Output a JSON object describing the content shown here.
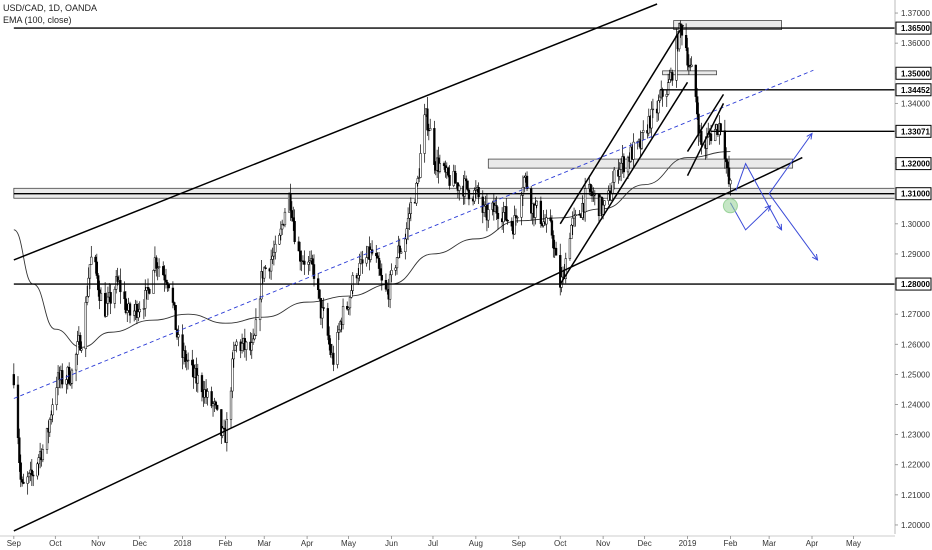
{
  "header": {
    "symbol_line": "USD/CAD, 1D, OANDA",
    "indicator_line": "EMA (100, close)"
  },
  "colors": {
    "candle_up": "#ffffff",
    "candle_down": "#000000",
    "candle_outline": "#000000",
    "ema": "#333333",
    "midline": "#2b3bd6",
    "projection_arrow": "#3b4bd8",
    "highlight_circle": "#9ad39a"
  },
  "chart_data": {
    "type": "candlestick",
    "title": "USD/CAD, 1D, OANDA",
    "indicator": "EMA (100, close)",
    "x_tick_labels": [
      "Sep",
      "Oct",
      "Nov",
      "Dec",
      "2018",
      "Feb",
      "Mar",
      "Apr",
      "May",
      "Jun",
      "Jul",
      "Aug",
      "Sep",
      "Oct",
      "Nov",
      "Dec",
      "2019",
      "Feb",
      "Mar",
      "Apr",
      "May"
    ],
    "x_tick_dates": [
      "2017-09-01",
      "2017-10-01",
      "2017-11-01",
      "2017-12-01",
      "2018-01-01",
      "2018-02-01",
      "2018-03-01",
      "2018-04-01",
      "2018-05-01",
      "2018-06-01",
      "2018-07-01",
      "2018-08-01",
      "2018-09-01",
      "2018-10-01",
      "2018-11-01",
      "2018-12-01",
      "2019-01-01",
      "2019-02-01",
      "2019-03-01",
      "2019-04-01",
      "2019-05-01"
    ],
    "y_tick_labels": [
      "1.20000",
      "1.21000",
      "1.22000",
      "1.23000",
      "1.24000",
      "1.25000",
      "1.26000",
      "1.27000",
      "1.28000",
      "1.29000",
      "1.30000",
      "1.31000",
      "1.32000",
      "1.33000",
      "1.34000",
      "1.35000",
      "1.36000",
      "1.37000"
    ],
    "ylim": [
      1.197,
      1.373
    ],
    "grid": false,
    "marked_levels": [
      {
        "label": "1.36500",
        "value": 1.365
      },
      {
        "label": "1.35000",
        "value": 1.35
      },
      {
        "label": "1.34452",
        "value": 1.34452
      },
      {
        "label": "1.33071",
        "value": 1.33071
      },
      {
        "label": "1.32000",
        "value": 1.32
      },
      {
        "label": "1.31000",
        "value": 1.31
      },
      {
        "label": "1.28000",
        "value": 1.28
      }
    ],
    "price_path_anchors": [
      [
        "2017-09-01",
        1.25
      ],
      [
        "2017-09-07",
        1.212
      ],
      [
        "2017-09-12",
        1.215
      ],
      [
        "2017-09-22",
        1.225
      ],
      [
        "2017-10-03",
        1.248
      ],
      [
        "2017-10-12",
        1.25
      ],
      [
        "2017-10-20",
        1.262
      ],
      [
        "2017-10-27",
        1.288
      ],
      [
        "2017-11-06",
        1.272
      ],
      [
        "2017-11-15",
        1.28
      ],
      [
        "2017-11-24",
        1.27
      ],
      [
        "2017-12-05",
        1.275
      ],
      [
        "2017-12-12",
        1.288
      ],
      [
        "2017-12-20",
        1.283
      ],
      [
        "2018-01-01",
        1.256
      ],
      [
        "2018-01-12",
        1.248
      ],
      [
        "2018-01-22",
        1.24
      ],
      [
        "2018-01-31",
        1.229
      ],
      [
        "2018-02-09",
        1.26
      ],
      [
        "2018-02-20",
        1.258
      ],
      [
        "2018-03-01",
        1.285
      ],
      [
        "2018-03-09",
        1.29
      ],
      [
        "2018-03-19",
        1.309
      ],
      [
        "2018-03-26",
        1.29
      ],
      [
        "2018-04-05",
        1.285
      ],
      [
        "2018-04-12",
        1.27
      ],
      [
        "2018-04-20",
        1.255
      ],
      [
        "2018-04-27",
        1.27
      ],
      [
        "2018-05-08",
        1.285
      ],
      [
        "2018-05-18",
        1.29
      ],
      [
        "2018-05-28",
        1.277
      ],
      [
        "2018-06-08",
        1.292
      ],
      [
        "2018-06-18",
        1.31
      ],
      [
        "2018-06-26",
        1.335
      ],
      [
        "2018-07-04",
        1.32
      ],
      [
        "2018-07-12",
        1.315
      ],
      [
        "2018-07-20",
        1.313
      ],
      [
        "2018-08-01",
        1.31
      ],
      [
        "2018-08-08",
        1.303
      ],
      [
        "2018-08-17",
        1.305
      ],
      [
        "2018-08-28",
        1.3
      ],
      [
        "2018-09-05",
        1.315
      ],
      [
        "2018-09-12",
        1.305
      ],
      [
        "2018-09-24",
        1.298
      ],
      [
        "2018-10-01",
        1.28
      ],
      [
        "2018-10-10",
        1.3
      ],
      [
        "2018-10-22",
        1.31
      ],
      [
        "2018-11-01",
        1.305
      ],
      [
        "2018-11-14",
        1.32
      ],
      [
        "2018-11-26",
        1.325
      ],
      [
        "2018-12-06",
        1.335
      ],
      [
        "2018-12-17",
        1.345
      ],
      [
        "2018-12-28",
        1.365
      ],
      [
        "2019-01-04",
        1.35
      ],
      [
        "2019-01-12",
        1.325
      ],
      [
        "2019-01-18",
        1.33
      ],
      [
        "2019-01-25",
        1.333
      ],
      [
        "2019-02-01",
        1.312
      ]
    ],
    "ema_anchors": [
      [
        "2017-09-01",
        1.298
      ],
      [
        "2017-09-15",
        1.28
      ],
      [
        "2017-10-01",
        1.265
      ],
      [
        "2017-10-20",
        1.259
      ],
      [
        "2017-11-10",
        1.264
      ],
      [
        "2017-12-10",
        1.268
      ],
      [
        "2018-01-05",
        1.27
      ],
      [
        "2018-02-01",
        1.267
      ],
      [
        "2018-03-01",
        1.269
      ],
      [
        "2018-04-01",
        1.274
      ],
      [
        "2018-05-01",
        1.276
      ],
      [
        "2018-06-01",
        1.28
      ],
      [
        "2018-07-01",
        1.29
      ],
      [
        "2018-08-01",
        1.295
      ],
      [
        "2018-09-01",
        1.301
      ],
      [
        "2018-10-01",
        1.302
      ],
      [
        "2018-11-01",
        1.305
      ],
      [
        "2018-12-01",
        1.313
      ],
      [
        "2019-01-01",
        1.322
      ],
      [
        "2019-02-01",
        1.324
      ]
    ],
    "trendlines": [
      {
        "name": "channel-upper",
        "points": [
          [
            "2017-09-01",
            1.288
          ],
          [
            "2018-12-10",
            1.373
          ]
        ],
        "style": "solid"
      },
      {
        "name": "channel-lower",
        "points": [
          [
            "2017-09-01",
            1.198
          ],
          [
            "2019-03-25",
            1.322
          ]
        ],
        "style": "solid"
      },
      {
        "name": "channel-mid",
        "points": [
          [
            "2017-09-01",
            1.242
          ],
          [
            "2019-04-02",
            1.351
          ]
        ],
        "style": "dashed"
      },
      {
        "name": "rising-channel-lower",
        "points": [
          [
            "2018-10-01",
            1.28
          ],
          [
            "2019-01-01",
            1.347
          ]
        ],
        "style": "solid"
      },
      {
        "name": "rising-channel-upper",
        "points": [
          [
            "2018-10-01",
            1.3
          ],
          [
            "2018-12-29",
            1.366
          ]
        ],
        "style": "solid"
      },
      {
        "name": "flag-lower",
        "points": [
          [
            "2019-01-01",
            1.316
          ],
          [
            "2019-01-27",
            1.34
          ]
        ],
        "style": "solid"
      },
      {
        "name": "flag-upper",
        "points": [
          [
            "2019-01-01",
            1.324
          ],
          [
            "2019-01-27",
            1.343
          ]
        ],
        "style": "solid"
      }
    ],
    "horizontal_lines": [
      {
        "value": 1.365,
        "from": "2017-09-01"
      },
      {
        "value": 1.34452,
        "from": "2018-12-12"
      },
      {
        "value": 1.33071,
        "from": "2019-01-18"
      },
      {
        "value": 1.31,
        "from": "2017-09-01"
      },
      {
        "value": 1.28,
        "from": "2017-09-01"
      }
    ],
    "zones": [
      {
        "name": "zone-1.365",
        "from": "2018-12-22",
        "to": "2019-03-10",
        "y_low": 1.3645,
        "y_high": 1.3675
      },
      {
        "name": "zone-1.35",
        "from": "2018-12-14",
        "to": "2019-01-22",
        "y_low": 1.3495,
        "y_high": 1.3508
      },
      {
        "name": "zone-1.32",
        "from": "2018-08-10",
        "to": "2019-03-18",
        "y_low": 1.3185,
        "y_high": 1.3215
      },
      {
        "name": "zone-1.31",
        "from": "2017-09-01",
        "to": "2019-05-31",
        "y_low": 1.3085,
        "y_high": 1.3118
      }
    ],
    "projection_arrows": [
      {
        "name": "scenario-a",
        "points": [
          [
            "2019-02-05",
            1.311
          ],
          [
            "2019-02-12",
            1.32
          ],
          [
            "2019-03-10",
            1.298
          ]
        ]
      },
      {
        "name": "scenario-b",
        "points": [
          [
            "2019-02-01",
            1.307
          ],
          [
            "2019-02-12",
            1.298
          ],
          [
            "2019-03-02",
            1.306
          ]
        ]
      },
      {
        "name": "scenario-c",
        "points": [
          [
            "2019-03-01",
            1.31
          ],
          [
            "2019-04-01",
            1.33
          ]
        ]
      },
      {
        "name": "scenario-d",
        "points": [
          [
            "2019-03-01",
            1.31
          ],
          [
            "2019-04-05",
            1.288
          ]
        ]
      }
    ],
    "highlight_point": [
      "2019-02-01",
      1.306
    ]
  }
}
